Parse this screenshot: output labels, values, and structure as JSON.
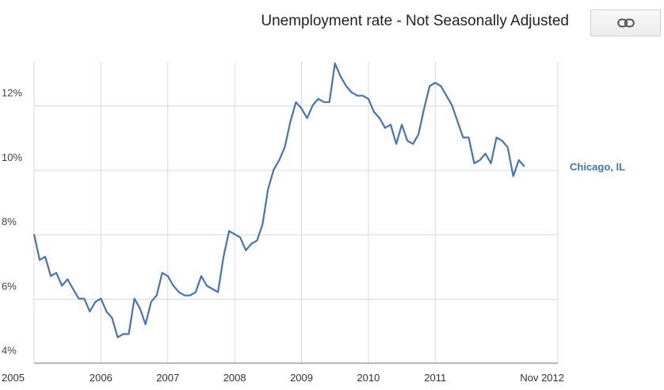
{
  "header": {
    "title": "Unemployment rate - Not Seasonally Adjusted"
  },
  "toolbar": {
    "link_icon": "link-icon"
  },
  "chart_data": {
    "type": "line",
    "title": "Unemployment rate - Not Seasonally Adjusted",
    "xlabel": "",
    "ylabel": "",
    "x_start": "2005-01",
    "x_end": "2012-11",
    "x_ticks": [
      "2005",
      "2006",
      "2007",
      "2008",
      "2009",
      "2010",
      "2011",
      "Nov 2012"
    ],
    "y_ticks": [
      "4%",
      "6%",
      "8%",
      "10%",
      "12%"
    ],
    "y_tick_values": [
      4,
      6,
      8,
      10,
      12
    ],
    "ylim": [
      3.6,
      12.95
    ],
    "grid": true,
    "series": [
      {
        "name": "Chicago, IL",
        "color": "#4472c4",
        "values": [
          7.6,
          6.8,
          6.9,
          6.3,
          6.4,
          6.0,
          6.2,
          5.9,
          5.6,
          5.6,
          5.2,
          5.5,
          5.6,
          5.2,
          5.0,
          4.4,
          4.5,
          4.5,
          5.6,
          5.3,
          4.8,
          5.5,
          5.7,
          6.4,
          6.3,
          6.0,
          5.8,
          5.7,
          5.7,
          5.8,
          6.3,
          6.0,
          5.9,
          5.8,
          6.9,
          7.7,
          7.6,
          7.5,
          7.1,
          7.3,
          7.4,
          7.9,
          9.0,
          9.6,
          9.9,
          10.3,
          11.1,
          11.7,
          11.5,
          11.2,
          11.6,
          11.8,
          11.7,
          11.7,
          12.9,
          12.5,
          12.2,
          12.0,
          11.9,
          11.9,
          11.8,
          11.4,
          11.2,
          10.9,
          11.0,
          10.4,
          11.0,
          10.5,
          10.4,
          10.7,
          11.5,
          12.2,
          12.3,
          12.2,
          11.9,
          11.6,
          11.1,
          10.6,
          10.6,
          9.8,
          9.9,
          10.1,
          9.8,
          10.6,
          10.5,
          10.3,
          9.4,
          9.9,
          9.7
        ]
      }
    ]
  }
}
